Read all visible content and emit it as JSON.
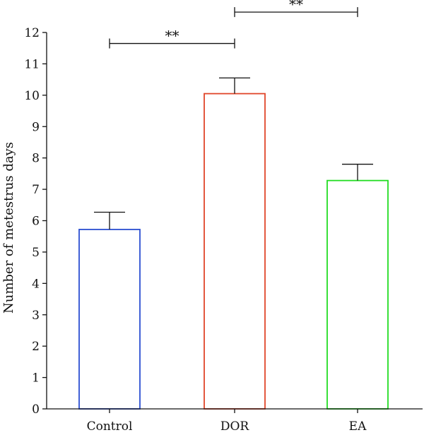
{
  "chart_data": {
    "type": "bar",
    "title": "",
    "xlabel": "",
    "ylabel": "Number of metestrus days",
    "ylim": [
      0,
      12
    ],
    "yticks": [
      0,
      1,
      2,
      3,
      4,
      5,
      6,
      7,
      8,
      9,
      10,
      11,
      12
    ],
    "categories": [
      "Control",
      "DOR",
      "EA"
    ],
    "values": [
      5.72,
      10.05,
      7.28
    ],
    "errors": [
      0.55,
      0.5,
      0.52
    ],
    "bar_colors": [
      "#2b4fd1",
      "#e0462a",
      "#22dd22"
    ],
    "grid": false,
    "significance": [
      {
        "from": 0,
        "to": 1,
        "label": "**",
        "y": 11.65
      },
      {
        "from": 1,
        "to": 2,
        "label": "**",
        "y": 12.65
      }
    ]
  }
}
